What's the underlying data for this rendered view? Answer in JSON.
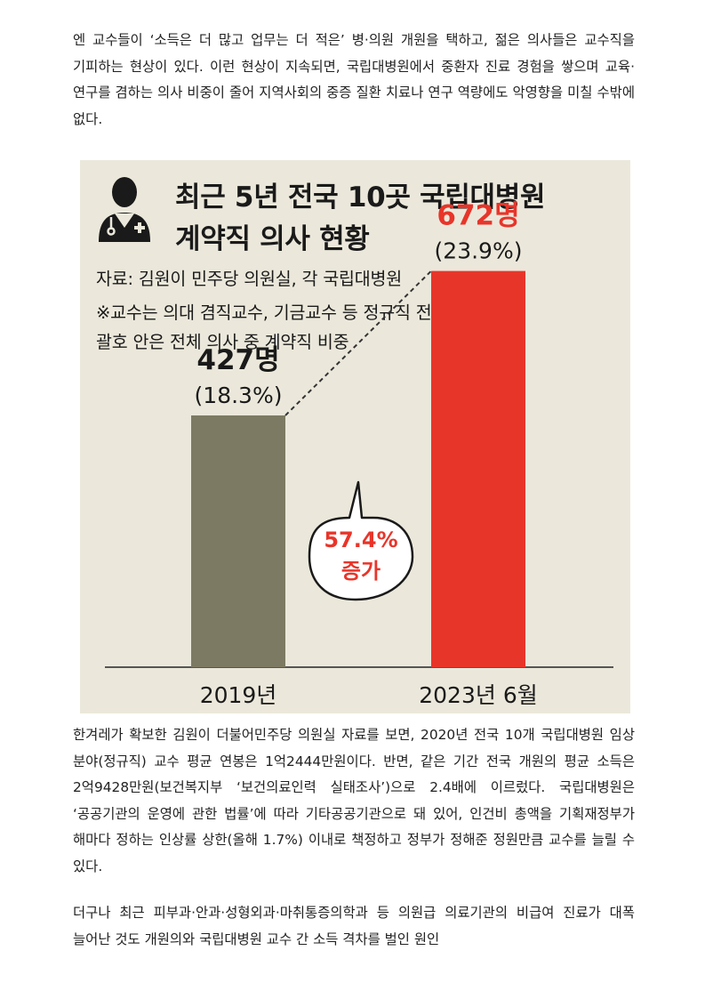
{
  "article": {
    "paragraph_1": "엔 교수들이 ‘소득은 더 많고 업무는 더 적은’ 병·의원 개원을 택하고, 젊은 의사들은 교수직을 기피하는 현상이 있다. 이런 현상이 지속되면, 국립대병원에서 중환자 진료 경험을 쌓으며 교육·연구를 겸하는 의사 비중이 줄어 지역사회의 중증 질환 치료나 연구 역량에도 악영향을 미칠 수밖에 없다.",
    "paragraph_2": "한겨레가 확보한 김원이 더불어민주당 의원실 자료를 보면, 2020년 전국 10개 국립대병원 임상 분야(정규직) 교수 평균 연봉은 1억2444만원이다. 반면, 같은 기간 전국 개원의 평균 소득은 2억9428만원(보건복지부 ‘보건의료인력 실태조사’)으로 2.4배에 이르렀다. 국립대병원은 ‘공공기관의 운영에 관한 법률’에 따라 기타공공기관으로 돼 있어, 인건비 총액을 기획재정부가 해마다 정하는 인상률 상한(올해 1.7%) 이내로 책정하고 정부가 정해준 정원만큼 교수를 늘릴 수 있다.",
    "paragraph_3": "더구나 최근 피부과·안과·성형외과·마취통증의학과 등 의원급 의료기관의 비급여 진료가 대폭 늘어난 것도 개원의와 국립대병원 교수 간 소득 격차를 벌인 원인"
  },
  "infographic": {
    "icon": "doctor-icon",
    "title_line1": "최근 5년 전국 10곳 국립대병원",
    "title_line2": "계약직 의사 현황",
    "source": "자료: 김원이 민주당 의원실, 각 국립대병원",
    "note_line1": "※교수는 의대 겸직교수, 기금교수 등 정규직 전임교원 기준,",
    "note_line2": "괄호 안은 전체 의사 중 계약직 비중"
  },
  "chart_data": {
    "type": "bar",
    "categories": [
      "2019년",
      "2023년 6월"
    ],
    "values": [
      427,
      672
    ],
    "value_labels": [
      "427명",
      "672명"
    ],
    "share_labels": [
      "(18.3%)",
      "(23.9%)"
    ],
    "bar_colors": [
      "#7d7a63",
      "#e8352a"
    ],
    "value_label_colors": [
      "#1a1a1a",
      "#e8352a"
    ],
    "annotation": {
      "line1": "57.4%",
      "line2": "증가",
      "color": "#e8352a"
    },
    "ylim": [
      0,
      860
    ],
    "grid": false
  }
}
